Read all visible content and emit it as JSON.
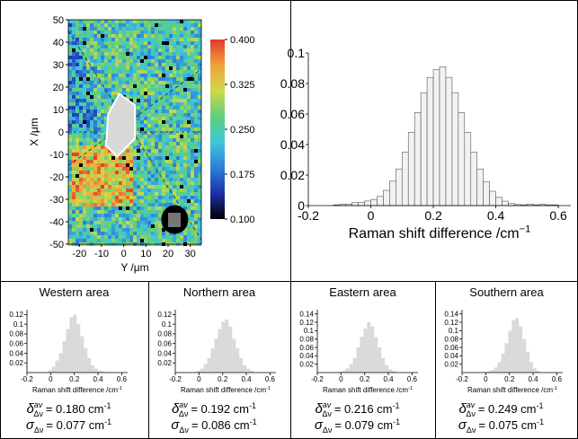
{
  "chart_data": [
    {
      "type": "heatmap",
      "x_label": "Y /μm",
      "y_label": "X /μm",
      "xlim": [
        -25,
        35
      ],
      "xticks": [
        -20,
        -10,
        0,
        10,
        20,
        30
      ],
      "ylim": [
        -50,
        50
      ],
      "yticks": [
        -50,
        -40,
        -30,
        -20,
        -10,
        0,
        10,
        20,
        30,
        40,
        50
      ],
      "clim": [
        0.1,
        0.4
      ],
      "cticks": [
        {
          "value": 0.1,
          "label": "0.100"
        },
        {
          "value": 0.175,
          "label": "0.175"
        },
        {
          "value": 0.25,
          "label": "0.250"
        },
        {
          "value": 0.325,
          "label": "0.325"
        },
        {
          "value": 0.4,
          "label": "0.400"
        }
      ],
      "colormap": [
        "#000000",
        "#1c2fa8",
        "#2e7fd6",
        "#3fc6d9",
        "#5fcf7a",
        "#cfd84a",
        "#f2a23a",
        "#e3382a"
      ]
    },
    {
      "type": "histogram",
      "x_label": "Raman shift difference /cm",
      "x_label_sup": "−1",
      "bins": [
        -0.12,
        -0.1,
        -0.08,
        -0.06,
        -0.04,
        -0.02,
        0,
        0.02,
        0.04,
        0.06,
        0.08,
        0.1,
        0.12,
        0.14,
        0.16,
        0.18,
        0.2,
        0.22,
        0.24,
        0.26,
        0.28,
        0.3,
        0.32,
        0.34,
        0.36,
        0.38,
        0.4,
        0.42,
        0.44,
        0.46,
        0.48,
        0.5,
        0.52,
        0.54,
        0.56,
        0.58,
        0.6
      ],
      "values": [
        0.0005,
        0.001,
        0.001,
        0.002,
        0.002,
        0.003,
        0.004,
        0.006,
        0.01,
        0.016,
        0.024,
        0.035,
        0.048,
        0.061,
        0.074,
        0.084,
        0.089,
        0.091,
        0.084,
        0.074,
        0.061,
        0.048,
        0.035,
        0.024,
        0.0155,
        0.0094,
        0.0054,
        0.0029,
        0.0014,
        0.0007,
        0.0005,
        0.001,
        0.0005,
        0.001,
        0.0005,
        0.0005
      ],
      "color": "#f2f2f2",
      "edgecolor": "#555555",
      "xlim": [
        -0.2,
        0.64
      ],
      "xticks": [
        -0.2,
        0,
        0.2,
        0.4,
        0.6
      ],
      "ylim": [
        0,
        0.1
      ],
      "yticks": [
        0,
        0.02,
        0.04,
        0.06,
        0.08,
        0.1
      ]
    },
    {
      "type": "histogram",
      "title": "Western area",
      "x_label": "Raman shift difference /cm",
      "x_label_sup": "-1",
      "bins": [
        -0.02,
        0.01,
        0.04,
        0.07,
        0.1,
        0.13,
        0.16,
        0.19,
        0.22,
        0.25,
        0.28,
        0.31,
        0.34,
        0.37,
        0.4,
        0.43,
        0.46
      ],
      "values": [
        0.005,
        0.012,
        0.025,
        0.04,
        0.065,
        0.09,
        0.115,
        0.12,
        0.1,
        0.075,
        0.05,
        0.03,
        0.015,
        0.008,
        0.004,
        0.002
      ],
      "color": "#d9d9d9",
      "xlim": [
        -0.2,
        0.65
      ],
      "xticks": [
        -0.2,
        0,
        0.2,
        0.4,
        0.6
      ],
      "ylim": [
        0,
        0.13
      ],
      "yticks": [
        0.02,
        0.04,
        0.06,
        0.08,
        0.1,
        0.12
      ],
      "stats": [
        {
          "symbol": "δ",
          "sup": "av",
          "sub": "Δν",
          "text": "= 0.180 cm",
          "unit_sup": "-1"
        },
        {
          "symbol": "σ",
          "sub": "Δν",
          "text": "= 0.077 cm",
          "unit_sup": "-1"
        }
      ]
    },
    {
      "type": "histogram",
      "title": "Northern area",
      "x_label": "Raman shift difference /cm",
      "x_label_sup": "-1",
      "bins": [
        -0.02,
        0.01,
        0.04,
        0.07,
        0.1,
        0.13,
        0.16,
        0.19,
        0.22,
        0.25,
        0.28,
        0.31,
        0.34,
        0.37,
        0.4,
        0.43,
        0.46
      ],
      "values": [
        0.004,
        0.008,
        0.018,
        0.03,
        0.05,
        0.07,
        0.09,
        0.105,
        0.11,
        0.095,
        0.07,
        0.05,
        0.03,
        0.015,
        0.008,
        0.004
      ],
      "color": "#d9d9d9",
      "xlim": [
        -0.2,
        0.65
      ],
      "xticks": [
        -0.2,
        0,
        0.2,
        0.4,
        0.6
      ],
      "ylim": [
        0,
        0.13
      ],
      "yticks": [
        0.02,
        0.04,
        0.06,
        0.08,
        0.1,
        0.12
      ],
      "stats": [
        {
          "symbol": "δ",
          "sup": "av",
          "sub": "Δν",
          "text": "= 0.192 cm",
          "unit_sup": "-1"
        },
        {
          "symbol": "σ",
          "sub": "Δν",
          "text": "= 0.086 cm",
          "unit_sup": "-1"
        }
      ]
    },
    {
      "type": "histogram",
      "title": "Eastern area",
      "x_label": "Raman shift difference /cm",
      "x_label_sup": "-1",
      "bins": [
        -0.02,
        0.01,
        0.04,
        0.07,
        0.1,
        0.13,
        0.16,
        0.19,
        0.22,
        0.25,
        0.28,
        0.31,
        0.34,
        0.37,
        0.4,
        0.43,
        0.46
      ],
      "values": [
        0.002,
        0.005,
        0.01,
        0.02,
        0.035,
        0.06,
        0.085,
        0.105,
        0.12,
        0.11,
        0.085,
        0.06,
        0.035,
        0.018,
        0.008,
        0.004
      ],
      "color": "#d9d9d9",
      "xlim": [
        -0.2,
        0.65
      ],
      "xticks": [
        -0.2,
        0,
        0.2,
        0.4,
        0.6
      ],
      "ylim": [
        0,
        0.15
      ],
      "yticks": [
        0.02,
        0.04,
        0.06,
        0.08,
        0.1,
        0.12,
        0.14
      ],
      "stats": [
        {
          "symbol": "δ",
          "sup": "av",
          "sub": "Δν",
          "text": "= 0.216 cm",
          "unit_sup": "-1"
        },
        {
          "symbol": "σ",
          "sub": "Δν",
          "text": "= 0.079 cm",
          "unit_sup": "-1"
        }
      ]
    },
    {
      "type": "histogram",
      "title": "Southern area",
      "x_label": "Raman shift difference /cm",
      "x_label_sup": "-1",
      "bins": [
        -0.02,
        0.01,
        0.04,
        0.07,
        0.1,
        0.13,
        0.16,
        0.19,
        0.22,
        0.25,
        0.28,
        0.31,
        0.34,
        0.37,
        0.4,
        0.43,
        0.46
      ],
      "values": [
        0.001,
        0.003,
        0.006,
        0.012,
        0.025,
        0.045,
        0.07,
        0.1,
        0.125,
        0.13,
        0.11,
        0.08,
        0.05,
        0.025,
        0.01,
        0.004
      ],
      "color": "#d9d9d9",
      "xlim": [
        -0.2,
        0.65
      ],
      "xticks": [
        -0.2,
        0,
        0.2,
        0.4,
        0.6
      ],
      "ylim": [
        0,
        0.15
      ],
      "yticks": [
        0.02,
        0.04,
        0.06,
        0.08,
        0.1,
        0.12,
        0.14
      ],
      "stats": [
        {
          "symbol": "δ",
          "sup": "av",
          "sub": "Δν",
          "text": "= 0.249 cm",
          "unit_sup": "-1"
        },
        {
          "symbol": "σ",
          "sub": "Δν",
          "text": "= 0.075 cm",
          "unit_sup": "-1"
        }
      ]
    }
  ]
}
